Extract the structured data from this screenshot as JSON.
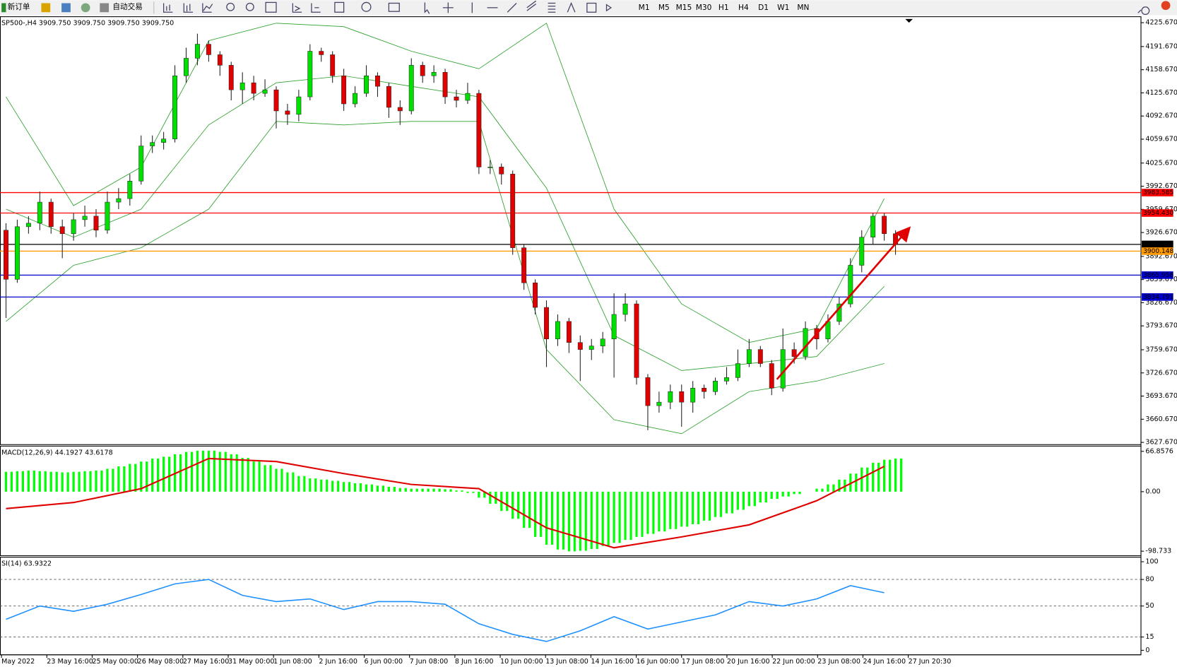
{
  "toolbar": {
    "new_order": "新订单",
    "auto_trading": "自动交易",
    "timeframes": [
      "M1",
      "M5",
      "M15",
      "M30",
      "H1",
      "H4",
      "D1",
      "W1",
      "MN"
    ]
  },
  "time_axis": {
    "labels": [
      "May 2022",
      "23 May 16:00",
      "25 May 00:00",
      "26 May 08:00",
      "27 May 16:00",
      "31 May 00:00",
      "1 Jun 08:00",
      "2 Jun 16:00",
      "6 Jun 00:00",
      "7 Jun 08:00",
      "8 Jun 16:00",
      "10 Jun 00:00",
      "13 Jun 08:00",
      "14 Jun 16:00",
      "16 Jun 00:00",
      "17 Jun 08:00",
      "20 Jun 16:00",
      "22 Jun 00:00",
      "23 Jun 08:00",
      "24 Jun 16:00",
      "27 Jun 20:30"
    ]
  },
  "chart_data": [
    {
      "type": "candlestick",
      "header": "SP500-,H4  3909.750 3909.750 3909.750 3909.750",
      "up_color": "#00e000",
      "down_color": "#e00000",
      "candles": [
        [
          3930,
          3940,
          3805,
          3860
        ],
        [
          3860,
          3945,
          3855,
          3935
        ],
        [
          3935,
          3950,
          3925,
          3940
        ],
        [
          3940,
          3985,
          3930,
          3970
        ],
        [
          3970,
          3975,
          3925,
          3935
        ],
        [
          3935,
          3945,
          3890,
          3925
        ],
        [
          3925,
          3955,
          3915,
          3945
        ],
        [
          3945,
          3965,
          3935,
          3950
        ],
        [
          3950,
          3960,
          3920,
          3930
        ],
        [
          3930,
          3985,
          3925,
          3970
        ],
        [
          3970,
          3990,
          3960,
          3975
        ],
        [
          3975,
          4010,
          3965,
          4000
        ],
        [
          4000,
          4065,
          3995,
          4050
        ],
        [
          4050,
          4065,
          4040,
          4055
        ],
        [
          4055,
          4070,
          4045,
          4060
        ],
        [
          4060,
          4165,
          4055,
          4150
        ],
        [
          4150,
          4190,
          4140,
          4175
        ],
        [
          4175,
          4210,
          4165,
          4195
        ],
        [
          4195,
          4200,
          4170,
          4180
        ],
        [
          4180,
          4185,
          4150,
          4165
        ],
        [
          4165,
          4170,
          4115,
          4130
        ],
        [
          4130,
          4155,
          4110,
          4140
        ],
        [
          4140,
          4150,
          4115,
          4125
        ],
        [
          4125,
          4145,
          4120,
          4130
        ],
        [
          4130,
          4135,
          4075,
          4100
        ],
        [
          4100,
          4110,
          4080,
          4095
        ],
        [
          4095,
          4130,
          4085,
          4120
        ],
        [
          4120,
          4195,
          4115,
          4185
        ],
        [
          4185,
          4190,
          4170,
          4180
        ],
        [
          4180,
          4185,
          4140,
          4150
        ],
        [
          4150,
          4160,
          4100,
          4110
        ],
        [
          4110,
          4135,
          4105,
          4125
        ],
        [
          4125,
          4165,
          4120,
          4150
        ],
        [
          4150,
          4155,
          4120,
          4135
        ],
        [
          4135,
          4140,
          4090,
          4105
        ],
        [
          4105,
          4115,
          4080,
          4100
        ],
        [
          4100,
          4175,
          4095,
          4165
        ],
        [
          4165,
          4170,
          4140,
          4150
        ],
        [
          4150,
          4165,
          4140,
          4155
        ],
        [
          4155,
          4160,
          4110,
          4120
        ],
        [
          4120,
          4130,
          4105,
          4115
        ],
        [
          4115,
          4140,
          4110,
          4125
        ],
        [
          4125,
          4130,
          4010,
          4020
        ],
        [
          4020,
          4030,
          4010,
          4020
        ],
        [
          4020,
          4025,
          3995,
          4010
        ],
        [
          4010,
          4015,
          3895,
          3905
        ],
        [
          3905,
          3910,
          3845,
          3855
        ],
        [
          3855,
          3860,
          3810,
          3820
        ],
        [
          3820,
          3830,
          3735,
          3775
        ],
        [
          3775,
          3810,
          3765,
          3800
        ],
        [
          3800,
          3805,
          3755,
          3770
        ],
        [
          3770,
          3780,
          3715,
          3760
        ],
        [
          3760,
          3775,
          3745,
          3765
        ],
        [
          3765,
          3785,
          3755,
          3775
        ],
        [
          3775,
          3840,
          3720,
          3810
        ],
        [
          3810,
          3840,
          3800,
          3825
        ],
        [
          3825,
          3830,
          3710,
          3720
        ],
        [
          3720,
          3725,
          3645,
          3680
        ],
        [
          3680,
          3700,
          3670,
          3685
        ],
        [
          3685,
          3710,
          3675,
          3700
        ],
        [
          3700,
          3710,
          3650,
          3685
        ],
        [
          3685,
          3715,
          3670,
          3705
        ],
        [
          3705,
          3710,
          3690,
          3700
        ],
        [
          3700,
          3720,
          3695,
          3715
        ],
        [
          3715,
          3735,
          3710,
          3720
        ],
        [
          3720,
          3760,
          3715,
          3740
        ],
        [
          3740,
          3775,
          3735,
          3760
        ],
        [
          3760,
          3765,
          3735,
          3740
        ],
        [
          3740,
          3745,
          3695,
          3705
        ],
        [
          3705,
          3790,
          3700,
          3760
        ],
        [
          3760,
          3770,
          3740,
          3750
        ],
        [
          3750,
          3800,
          3745,
          3790
        ],
        [
          3790,
          3795,
          3760,
          3775
        ],
        [
          3775,
          3810,
          3770,
          3800
        ],
        [
          3800,
          3835,
          3795,
          3825
        ],
        [
          3825,
          3890,
          3820,
          3880
        ],
        [
          3880,
          3930,
          3870,
          3920
        ],
        [
          3920,
          3955,
          3910,
          3950
        ],
        [
          3950,
          3955,
          3915,
          3925
        ],
        [
          3925,
          3930,
          3895,
          3909.75
        ]
      ],
      "bands": [
        {
          "color": "#2ca02c",
          "x": [
            0,
            6,
            12,
            18,
            24,
            30,
            36,
            42,
            48,
            54,
            60,
            66,
            72,
            78
          ],
          "values": [
            4120,
            3965,
            4020,
            4200,
            4225,
            4220,
            4185,
            4160,
            4225,
            3960,
            3825,
            3770,
            3790,
            3975
          ]
        },
        {
          "color": "#2ca02c",
          "x": [
            0,
            6,
            12,
            18,
            24,
            30,
            36,
            42,
            48,
            54,
            60,
            66,
            72,
            78
          ],
          "values": [
            3960,
            3920,
            3960,
            4080,
            4140,
            4150,
            4135,
            4120,
            3990,
            3780,
            3730,
            3740,
            3750,
            3850
          ]
        },
        {
          "color": "#2ca02c",
          "x": [
            0,
            6,
            12,
            18,
            24,
            30,
            36,
            42,
            48,
            54,
            60,
            66,
            72,
            78
          ],
          "values": [
            3800,
            3880,
            3905,
            3960,
            4085,
            4080,
            4085,
            4085,
            3760,
            3660,
            3640,
            3700,
            3715,
            3740
          ]
        }
      ],
      "levels": [
        {
          "value": 3983.585,
          "label": "3983.585",
          "color": "#ff0000"
        },
        {
          "value": 3954.43,
          "label": "3954.430",
          "color": "#ff0000"
        },
        {
          "value": 3909.75,
          "label": "3909.750",
          "color": "#000000"
        },
        {
          "value": 3900.148,
          "label": "3900.148",
          "color": "#ff9900"
        },
        {
          "value": 3865.958,
          "label": "3865.958",
          "color": "#0000cc"
        },
        {
          "value": 3834.791,
          "label": "3834.791",
          "color": "#0000cc"
        }
      ],
      "ylim": [
        3624.5,
        4234.2
      ],
      "yticks": [
        {
          "value": 4225.67,
          "label": "4225.670"
        },
        {
          "value": 4191.67,
          "label": "4191.670"
        },
        {
          "value": 4158.67,
          "label": "4158.670"
        },
        {
          "value": 4125.67,
          "label": "4125.670"
        },
        {
          "value": 4092.67,
          "label": "4092.670"
        },
        {
          "value": 4059.67,
          "label": "4059.670"
        },
        {
          "value": 4025.67,
          "label": "4025.670"
        },
        {
          "value": 3992.67,
          "label": "3992.670"
        },
        {
          "value": 3959.67,
          "label": "3959.670"
        },
        {
          "value": 3926.67,
          "label": "3926.670"
        },
        {
          "value": 3892.67,
          "label": "3892.670"
        },
        {
          "value": 3859.67,
          "label": "3859.670"
        },
        {
          "value": 3826.67,
          "label": "3826.670"
        },
        {
          "value": 3793.67,
          "label": "3793.670"
        },
        {
          "value": 3759.67,
          "label": "3759.670"
        },
        {
          "value": 3726.67,
          "label": "3726.670"
        },
        {
          "value": 3693.67,
          "label": "3693.670"
        },
        {
          "value": 3660.67,
          "label": "3660.670"
        },
        {
          "value": 3627.67,
          "label": "3627.670"
        }
      ]
    },
    {
      "type": "macd",
      "header": "MACD(12,26,9) 44.1927 43.6178",
      "histogram": {
        "color": "#00ff00",
        "values": [
          33,
          34,
          35,
          34,
          33,
          32,
          33,
          34,
          35,
          38,
          42,
          46,
          50,
          55,
          58,
          62,
          66,
          68,
          68,
          66,
          62,
          56,
          50,
          44,
          38,
          32,
          26,
          22,
          20,
          18,
          16,
          14,
          12,
          10,
          8,
          6,
          5,
          5,
          5,
          4,
          2,
          -2,
          -10,
          -20,
          -32,
          -45,
          -60,
          -75,
          -88,
          -96,
          -99,
          -98,
          -95,
          -90,
          -85,
          -80,
          -75,
          -70,
          -66,
          -62,
          -58,
          -54,
          -48,
          -42,
          -36,
          -30,
          -24,
          -18,
          -12,
          -8,
          -4,
          0,
          5,
          12,
          20,
          30,
          40,
          48,
          53,
          55
        ]
      },
      "signal": {
        "color": "#e00000",
        "x": [
          0,
          6,
          12,
          18,
          24,
          30,
          36,
          42,
          48,
          54,
          60,
          66,
          72,
          78
        ],
        "values": [
          -28,
          -18,
          5,
          55,
          50,
          30,
          12,
          5,
          -60,
          -93,
          -75,
          -55,
          -15,
          42
        ]
      },
      "ylim": [
        -106.2,
        75.57
      ],
      "yticks": [
        66.8576,
        {
          "value": 0,
          "label": "0.00"
        },
        -98.733
      ]
    },
    {
      "type": "line",
      "header": "SI(14) 63.9322",
      "series": [
        {
          "color": "#1e90ff",
          "x": [
            0,
            3,
            6,
            9,
            12,
            15,
            18,
            21,
            24,
            27,
            30,
            33,
            36,
            39,
            42,
            45,
            48,
            51,
            54,
            57,
            60,
            63,
            66,
            69,
            72,
            75,
            78
          ],
          "values": [
            35,
            50,
            44,
            52,
            63,
            75,
            80,
            62,
            55,
            58,
            46,
            55,
            55,
            52,
            30,
            18,
            10,
            22,
            38,
            24,
            32,
            40,
            55,
            50,
            58,
            73,
            65
          ]
        }
      ],
      "ylim": [
        -5.1,
        105.1
      ],
      "yticks": [
        100,
        80,
        50,
        15,
        0
      ]
    }
  ]
}
